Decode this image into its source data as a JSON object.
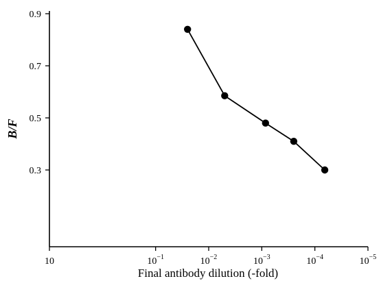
{
  "chart_data": {
    "type": "line",
    "title": "",
    "xlabel": "Final antibody dilution (-fold)",
    "ylabel": "B/F",
    "x_scale": "log",
    "x_reversed": true,
    "xlim": [
      10,
      1e-05
    ],
    "ylim": [
      0.1,
      0.92
    ],
    "x_ticks": [
      {
        "value": 10,
        "base": "10",
        "exp": ""
      },
      {
        "value": 0.1,
        "base": "10",
        "exp": "−1"
      },
      {
        "value": 0.01,
        "base": "10",
        "exp": "−2"
      },
      {
        "value": 0.001,
        "base": "10",
        "exp": "−3"
      },
      {
        "value": 0.0001,
        "base": "10",
        "exp": "−4"
      },
      {
        "value": 1e-05,
        "base": "10",
        "exp": "−5"
      }
    ],
    "y_ticks": [
      "0.9",
      "0.7",
      "0.5",
      "0.3"
    ],
    "grid": false,
    "series": [
      {
        "x": [
          0.025,
          0.005,
          0.00085,
          0.00025,
          6.5e-05
        ],
        "y": [
          0.84,
          0.585,
          0.48,
          0.41,
          0.3
        ],
        "color": "#000000",
        "marker": "filled-circle"
      }
    ]
  }
}
